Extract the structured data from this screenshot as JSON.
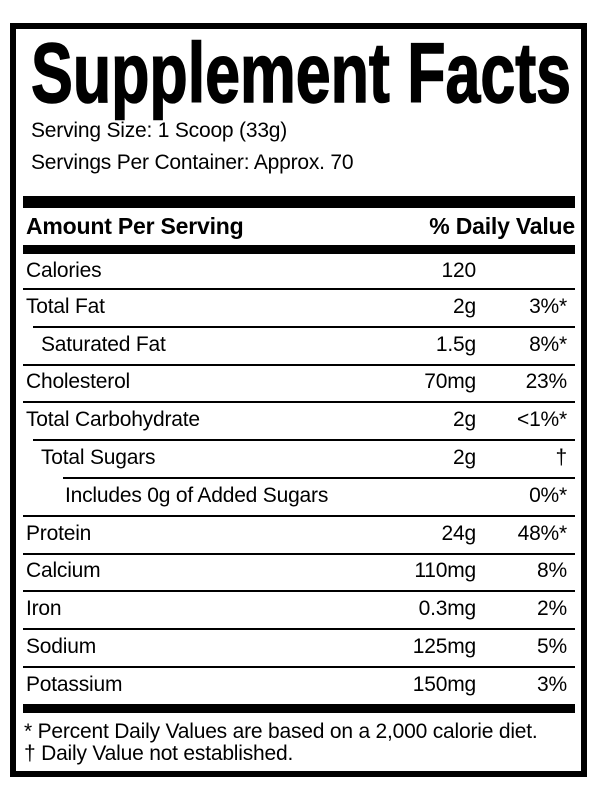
{
  "label": {
    "title": "Supplement Facts",
    "serving": {
      "size": "Serving Size: 1 Scoop (33g)",
      "per_container": "Servings Per Container: Approx. 70"
    },
    "columns": {
      "left": "Amount Per Serving",
      "right": "% Daily Value"
    },
    "rows": [
      {
        "name": "Calories",
        "amount": "120",
        "dv": "",
        "indent": 0
      },
      {
        "name": "Total Fat",
        "amount": "2g",
        "dv": "3%*",
        "indent": 0
      },
      {
        "name": "Saturated Fat",
        "amount": "1.5g",
        "dv": "8%*",
        "indent": 1
      },
      {
        "name": "Cholesterol",
        "amount": "70mg",
        "dv": "23%",
        "indent": 0
      },
      {
        "name": "Total Carbohydrate",
        "amount": "2g",
        "dv": "<1%*",
        "indent": 0
      },
      {
        "name": "Total Sugars",
        "amount": "2g",
        "dv": "†",
        "indent": 1
      },
      {
        "name": "Includes 0g of Added Sugars",
        "amount": "",
        "dv": "0%*",
        "indent": 2
      },
      {
        "name": "Protein",
        "amount": "24g",
        "dv": "48%*",
        "indent": 0
      },
      {
        "name": "Calcium",
        "amount": "110mg",
        "dv": "8%",
        "indent": 0
      },
      {
        "name": "Iron",
        "amount": "0.3mg",
        "dv": "2%",
        "indent": 0
      },
      {
        "name": "Sodium",
        "amount": "125mg",
        "dv": "5%",
        "indent": 0
      },
      {
        "name": "Potassium",
        "amount": "150mg",
        "dv": "3%",
        "indent": 0
      }
    ],
    "footnotes": [
      "* Percent Daily Values are based on a 2,000 calorie diet.",
      "† Daily Value not established."
    ],
    "colors": {
      "ink": "#000000",
      "paper": "#ffffff"
    }
  }
}
